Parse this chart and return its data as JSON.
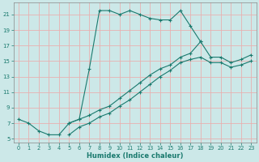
{
  "xlabel": "Humidex (Indice chaleur)",
  "bg_color": "#cce8e8",
  "grid_color": "#e8b0b0",
  "line_color": "#1a7a6e",
  "xlim": [
    -0.5,
    23.5
  ],
  "ylim": [
    4.5,
    22.5
  ],
  "yticks": [
    5,
    7,
    9,
    11,
    13,
    15,
    17,
    19,
    21
  ],
  "xticks": [
    0,
    1,
    2,
    3,
    4,
    5,
    6,
    7,
    8,
    9,
    10,
    11,
    12,
    13,
    14,
    15,
    16,
    17,
    18,
    19,
    20,
    21,
    22,
    23
  ],
  "curve1_x": [
    0,
    1,
    2,
    3,
    4,
    5,
    6,
    7,
    8,
    9,
    10,
    11,
    12,
    13,
    14,
    15,
    16,
    17,
    18
  ],
  "curve1_y": [
    7.5,
    7.0,
    6.0,
    5.5,
    5.5,
    7.0,
    7.5,
    14.0,
    21.5,
    21.5,
    21.0,
    21.5,
    21.0,
    20.5,
    20.3,
    20.3,
    21.5,
    19.5,
    17.5
  ],
  "curve2_x": [
    5,
    6,
    7,
    8,
    9,
    10,
    11,
    12,
    13,
    14,
    15,
    16,
    17,
    18,
    19,
    20,
    21,
    22,
    23
  ],
  "curve2_y": [
    7.0,
    7.5,
    8.0,
    8.7,
    9.2,
    10.2,
    11.2,
    12.2,
    13.2,
    14.0,
    14.5,
    15.5,
    16.0,
    17.5,
    15.5,
    15.5,
    14.8,
    15.2,
    15.8
  ],
  "curve3_x": [
    5,
    6,
    7,
    8,
    9,
    10,
    11,
    12,
    13,
    14,
    15,
    16,
    17,
    18,
    19,
    20,
    21,
    22,
    23
  ],
  "curve3_y": [
    5.5,
    6.5,
    7.0,
    7.8,
    8.3,
    9.2,
    10.0,
    11.0,
    12.0,
    13.0,
    13.8,
    14.8,
    15.2,
    15.5,
    14.8,
    14.8,
    14.2,
    14.5,
    15.0
  ]
}
